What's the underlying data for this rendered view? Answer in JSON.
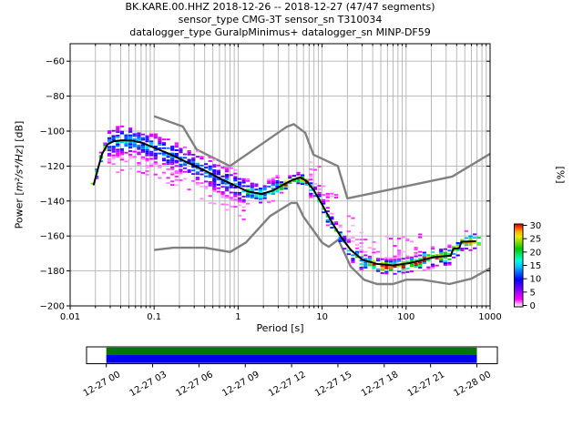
{
  "title": {
    "line1": "BK.KARE.00.HHZ   2018-12-26 -- 2018-12-27  (47/47 segments)",
    "line2": "sensor_type CMG-3T sensor_sn T310034",
    "line3": "datalogger_type GuralpMinimus+ datalogger_sn MINP-DF59"
  },
  "axes": {
    "xlabel": "Period [s]",
    "ylabel": {
      "prefix": "Power [",
      "math": "m²/s⁴/Hz",
      "suffix": "] [dB]"
    },
    "x_tick_labels": [
      "0.01",
      "0.1",
      "1",
      "10",
      "100",
      "1000"
    ],
    "x_tick_logs": [
      -2,
      -1,
      0,
      1,
      2,
      3
    ],
    "y_tick_labels": [
      "−60",
      "−80",
      "−100",
      "−120",
      "−140",
      "−160",
      "−180",
      "−200"
    ],
    "y_tick_values": [
      -60,
      -80,
      -100,
      -120,
      -140,
      -160,
      -180,
      -200
    ],
    "xlim_log": [
      -2,
      3
    ],
    "ylim": [
      -200,
      -50
    ],
    "grid": true
  },
  "colorbar": {
    "label": "[%]",
    "tick_labels": [
      "0",
      "5",
      "10",
      "15",
      "20",
      "25",
      "30"
    ],
    "tick_values": [
      0,
      5,
      10,
      15,
      20,
      25,
      30
    ],
    "min": 0,
    "max": 30
  },
  "timeline": {
    "tick_labels": [
      "12-27 00",
      "12-27 03",
      "12-27 06",
      "12-27 09",
      "12-27 12",
      "12-27 15",
      "12-27 18",
      "12-27 21",
      "12-28 00"
    ],
    "coverage_top_color": "#067406",
    "coverage_bottom_color": "#0000ee"
  },
  "colors": {
    "grid": "#b3b3b3",
    "noise_model": "#808080",
    "mean_line": "#000000",
    "spine": "#000000"
  },
  "chart_data": {
    "type": "heatmap",
    "title": "BK.KARE.00.HHZ 2018-12-26 -- 2018-12-27 (47/47 segments)",
    "xlabel": "Period [s]",
    "ylabel": "Power [m2/s4/Hz] [dB]",
    "x_range_s": [
      0.01,
      1000
    ],
    "y_range_db": [
      -200,
      -50
    ],
    "colorbar_percent_range": [
      0,
      30
    ],
    "gradient": [
      [
        0.0,
        "#ffffff"
      ],
      [
        0.04,
        "#ff9dff"
      ],
      [
        0.09,
        "#ff00ff"
      ],
      [
        0.17,
        "#aa00ff"
      ],
      [
        0.25,
        "#5000ff"
      ],
      [
        0.33,
        "#0000ff"
      ],
      [
        0.41,
        "#0064ff"
      ],
      [
        0.49,
        "#00c8ff"
      ],
      [
        0.56,
        "#00ffdc"
      ],
      [
        0.63,
        "#00eb64"
      ],
      [
        0.7,
        "#00c800"
      ],
      [
        0.78,
        "#87dc00"
      ],
      [
        0.85,
        "#ebeb00"
      ],
      [
        0.91,
        "#ffaa00"
      ],
      [
        0.96,
        "#ff3c00"
      ],
      [
        1.0,
        "#c80000"
      ]
    ],
    "mean_curve_period_db": [
      [
        0.019,
        -131
      ],
      [
        0.021,
        -123
      ],
      [
        0.024,
        -113
      ],
      [
        0.028,
        -107.5
      ],
      [
        0.033,
        -105.8
      ],
      [
        0.042,
        -105.3
      ],
      [
        0.055,
        -105.5
      ],
      [
        0.07,
        -106.5
      ],
      [
        0.1,
        -109.5
      ],
      [
        0.16,
        -113.5
      ],
      [
        0.25,
        -118
      ],
      [
        0.4,
        -122.5
      ],
      [
        0.63,
        -127.5
      ],
      [
        0.9,
        -131
      ],
      [
        1.3,
        -134.5
      ],
      [
        1.9,
        -136
      ],
      [
        2.6,
        -134
      ],
      [
        3.5,
        -130.5
      ],
      [
        4.5,
        -127.8
      ],
      [
        5.5,
        -126.5
      ],
      [
        6.5,
        -128.5
      ],
      [
        8,
        -134
      ],
      [
        10,
        -142
      ],
      [
        13,
        -152
      ],
      [
        17,
        -161
      ],
      [
        22,
        -168
      ],
      [
        30,
        -173.5
      ],
      [
        45,
        -176
      ],
      [
        70,
        -176.8
      ],
      [
        110,
        -175.5
      ],
      [
        150,
        -174
      ],
      [
        220,
        -172
      ],
      [
        340,
        -171.3
      ],
      [
        365,
        -167.3
      ],
      [
        430,
        -167
      ],
      [
        455,
        -163.3
      ],
      [
        680,
        -163
      ]
    ],
    "noise_models": {
      "nhnm_period_db": [
        [
          0.1,
          -91.5
        ],
        [
          0.22,
          -97.4
        ],
        [
          0.32,
          -110.5
        ],
        [
          0.8,
          -120
        ],
        [
          3.8,
          -97.5
        ],
        [
          4.6,
          -96
        ],
        [
          6.3,
          -101
        ],
        [
          7.9,
          -113.5
        ],
        [
          15.4,
          -120
        ],
        [
          20,
          -138.5
        ],
        [
          354.8,
          -126
        ],
        [
          1000,
          -113
        ]
      ],
      "nlnm_period_db": [
        [
          0.1,
          -168
        ],
        [
          0.17,
          -166.7
        ],
        [
          0.4,
          -166.7
        ],
        [
          0.8,
          -169.2
        ],
        [
          1.24,
          -163.7
        ],
        [
          2.4,
          -148.6
        ],
        [
          4.3,
          -141.1
        ],
        [
          5,
          -141.1
        ],
        [
          6,
          -149
        ],
        [
          10,
          -163.8
        ],
        [
          12,
          -166.2
        ],
        [
          15.6,
          -162.1
        ],
        [
          21.9,
          -177.5
        ],
        [
          31.6,
          -185
        ],
        [
          45,
          -187.5
        ],
        [
          70,
          -187.5
        ],
        [
          101,
          -185
        ],
        [
          154,
          -185
        ],
        [
          328,
          -187.5
        ],
        [
          600,
          -184.4
        ],
        [
          1000,
          -178.5
        ]
      ]
    },
    "histogram_band_regions": [
      {
        "p0": 0.018,
        "p1": 0.028,
        "up": 3,
        "down": 3,
        "peak": 28,
        "sigma": 1.4,
        "fill": 0.95
      },
      {
        "p0": 0.028,
        "p1": 0.15,
        "up": 8,
        "down": 18,
        "peak": 13,
        "sigma": 4.5,
        "downsigma": 8,
        "fill": 0.8
      },
      {
        "p0": 0.15,
        "p1": 1.2,
        "up": 9,
        "down": 18,
        "peak": 12,
        "sigma": 4.5,
        "downsigma": 8,
        "fill": 0.75
      },
      {
        "p0": 1.2,
        "p1": 3.0,
        "up": 7,
        "down": 8,
        "peak": 16,
        "sigma": 3.2,
        "fill": 0.85
      },
      {
        "p0": 3.0,
        "p1": 7.0,
        "up": 3,
        "down": 4,
        "peak": 30,
        "sigma": 1.6,
        "coff": -0.5,
        "fill": 0.95
      },
      {
        "p0": 7.0,
        "p1": 35,
        "up": 15,
        "down": 6,
        "peak": 18,
        "sigma": 2.6,
        "upsigma": 7,
        "coff": -1,
        "cloud": true,
        "fill": 0.7
      },
      {
        "p0": 35,
        "p1": 150,
        "up": 12,
        "down": 5,
        "peak": 30,
        "sigma": 2.1,
        "upsigma": 5.5,
        "coff": -1,
        "cloud": true,
        "fill": 0.75
      },
      {
        "p0": 150,
        "p1": 760,
        "up": 7,
        "down": 6,
        "peak": 26,
        "sigma": 2.6,
        "fill": 0.85
      }
    ]
  }
}
